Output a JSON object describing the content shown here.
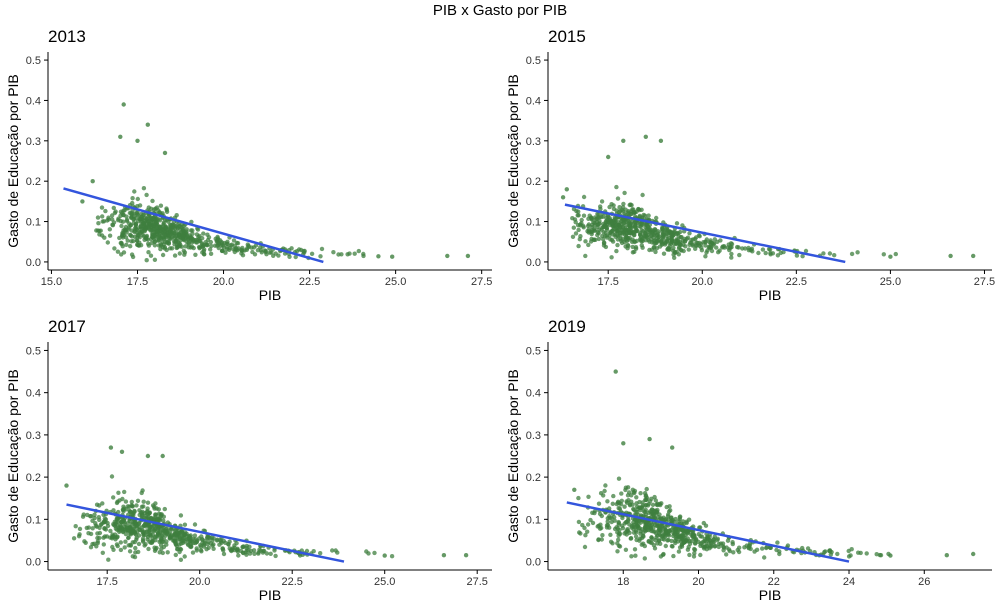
{
  "title": "PIB x Gasto por PIB",
  "colors": {
    "point": "#3f7f3f",
    "fit_line": "#3355dd",
    "axis": "#000000"
  },
  "chart_data": [
    {
      "type": "scatter",
      "title": "2013",
      "xlabel": "PIB",
      "ylabel": "Gasto de Educação por PIB",
      "xlim": [
        14.9,
        27.8
      ],
      "ylim": [
        -0.02,
        0.52
      ],
      "x_ticks": [
        15.0,
        17.5,
        20.0,
        22.5,
        25.0,
        27.5
      ],
      "x_tick_labels": [
        "15.0",
        "17.5",
        "20.0",
        "22.5",
        "25.0",
        "27.5"
      ],
      "y_ticks": [
        0.0,
        0.1,
        0.2,
        0.3,
        0.4,
        0.5
      ],
      "y_tick_labels": [
        "0.0",
        "0.1",
        "0.2",
        "0.3",
        "0.4",
        "0.5"
      ],
      "cloud": {
        "x_peak": 18.0,
        "x_min": 16.3,
        "x_max": 25.2,
        "y_center_at_peak": 0.09,
        "y_spread_at_peak": 0.05,
        "n": 650
      },
      "points": [
        [
          17.1,
          0.39
        ],
        [
          17.8,
          0.34
        ],
        [
          17.0,
          0.31
        ],
        [
          17.5,
          0.3
        ],
        [
          18.3,
          0.27
        ],
        [
          16.2,
          0.2
        ],
        [
          15.9,
          0.15
        ],
        [
          26.5,
          0.015
        ],
        [
          27.1,
          0.015
        ],
        [
          24.9,
          0.013
        ],
        [
          24.5,
          0.014
        ]
      ],
      "regression_line": {
        "x": [
          15.35,
          22.9
        ],
        "y": [
          0.182,
          0.0
        ]
      },
      "grid": false,
      "legend": "none"
    },
    {
      "type": "scatter",
      "title": "2015",
      "xlabel": "PIB",
      "ylabel": "Gasto de Educação por PIB",
      "xlim": [
        15.9,
        27.7
      ],
      "ylim": [
        -0.02,
        0.52
      ],
      "x_ticks": [
        17.5,
        20.0,
        22.5,
        25.0,
        27.5
      ],
      "x_tick_labels": [
        "17.5",
        "20.0",
        "22.5",
        "25.0",
        "27.5"
      ],
      "y_ticks": [
        0.0,
        0.1,
        0.2,
        0.3,
        0.4,
        0.5
      ],
      "y_tick_labels": [
        "0.0",
        "0.1",
        "0.2",
        "0.3",
        "0.4",
        "0.5"
      ],
      "cloud": {
        "x_peak": 18.2,
        "x_min": 16.5,
        "x_max": 25.2,
        "y_center_at_peak": 0.09,
        "y_spread_at_peak": 0.05,
        "n": 650
      },
      "points": [
        [
          18.5,
          0.31
        ],
        [
          17.9,
          0.3
        ],
        [
          18.9,
          0.3
        ],
        [
          17.5,
          0.26
        ],
        [
          16.4,
          0.18
        ],
        [
          16.3,
          0.16
        ],
        [
          26.6,
          0.015
        ],
        [
          27.2,
          0.015
        ],
        [
          25.0,
          0.013
        ]
      ],
      "regression_line": {
        "x": [
          16.35,
          23.8
        ],
        "y": [
          0.142,
          0.0
        ]
      },
      "grid": false,
      "legend": "none"
    },
    {
      "type": "scatter",
      "title": "2017",
      "xlabel": "PIB",
      "ylabel": "Gasto de Educação por PIB",
      "xlim": [
        15.9,
        27.9
      ],
      "ylim": [
        -0.02,
        0.52
      ],
      "x_ticks": [
        17.5,
        20.0,
        22.5,
        25.0,
        27.5
      ],
      "x_tick_labels": [
        "17.5",
        "20.0",
        "22.5",
        "25.0",
        "27.5"
      ],
      "y_ticks": [
        0.0,
        0.1,
        0.2,
        0.3,
        0.4,
        0.5
      ],
      "y_tick_labels": [
        "0.0",
        "0.1",
        "0.2",
        "0.3",
        "0.4",
        "0.5"
      ],
      "cloud": {
        "x_peak": 18.5,
        "x_min": 16.6,
        "x_max": 25.3,
        "y_center_at_peak": 0.09,
        "y_spread_at_peak": 0.05,
        "n": 650
      },
      "points": [
        [
          17.6,
          0.27
        ],
        [
          17.9,
          0.26
        ],
        [
          18.6,
          0.25
        ],
        [
          19.0,
          0.25
        ],
        [
          16.4,
          0.18
        ],
        [
          26.6,
          0.015
        ],
        [
          27.2,
          0.015
        ],
        [
          25.0,
          0.014
        ]
      ],
      "regression_line": {
        "x": [
          16.4,
          23.9
        ],
        "y": [
          0.135,
          0.0
        ]
      },
      "grid": false,
      "legend": "none"
    },
    {
      "type": "scatter",
      "title": "2019",
      "xlabel": "PIB",
      "ylabel": "Gasto de Educação por PIB",
      "xlim": [
        16.0,
        27.8
      ],
      "ylim": [
        -0.02,
        0.52
      ],
      "x_ticks": [
        18,
        20,
        22,
        24,
        26
      ],
      "x_tick_labels": [
        "18",
        "20",
        "22",
        "24",
        "26"
      ],
      "y_ticks": [
        0.0,
        0.1,
        0.2,
        0.3,
        0.4,
        0.5
      ],
      "y_tick_labels": [
        "0.0",
        "0.1",
        "0.2",
        "0.3",
        "0.4",
        "0.5"
      ],
      "cloud": {
        "x_peak": 18.7,
        "x_min": 16.8,
        "x_max": 25.3,
        "y_center_at_peak": 0.1,
        "y_spread_at_peak": 0.055,
        "n": 650
      },
      "points": [
        [
          17.8,
          0.45
        ],
        [
          18.0,
          0.28
        ],
        [
          18.7,
          0.29
        ],
        [
          19.3,
          0.27
        ],
        [
          16.7,
          0.17
        ],
        [
          26.6,
          0.015
        ],
        [
          27.3,
          0.018
        ],
        [
          25.1,
          0.014
        ]
      ],
      "regression_line": {
        "x": [
          16.5,
          24.0
        ],
        "y": [
          0.14,
          0.0
        ]
      },
      "grid": false,
      "legend": "none"
    }
  ]
}
